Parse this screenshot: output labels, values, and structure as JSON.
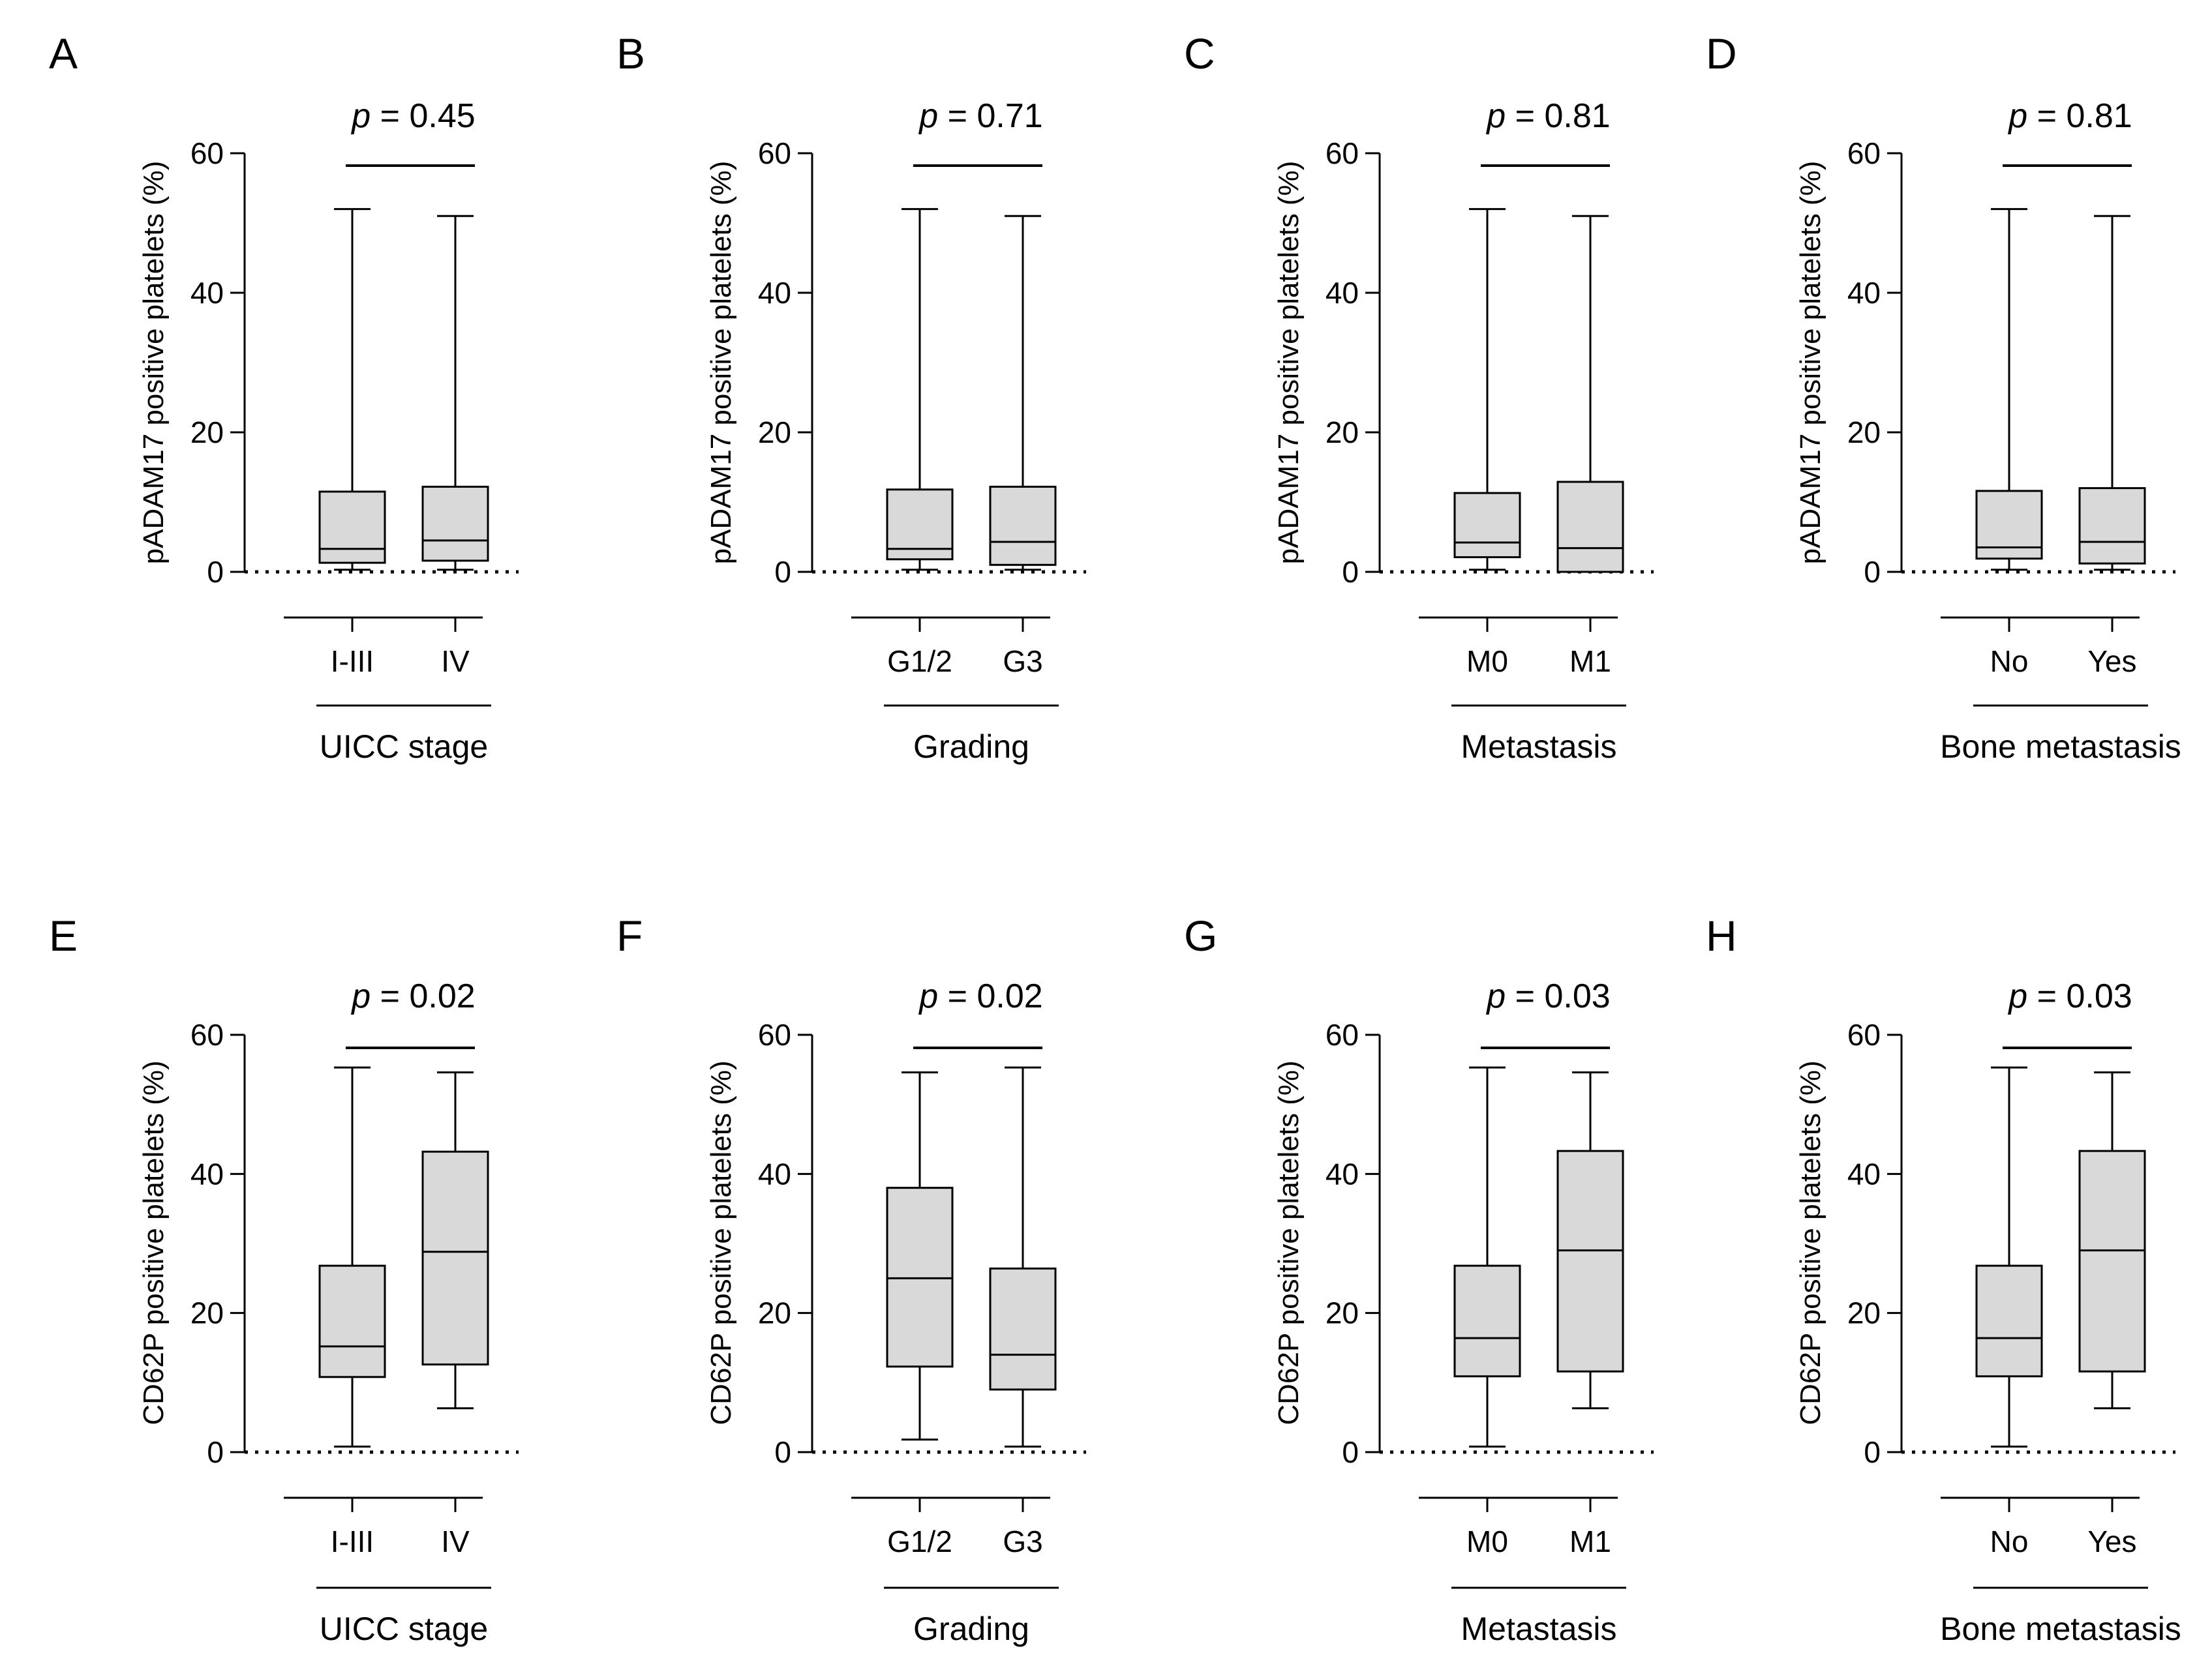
{
  "chart_data": [
    {
      "panel": "A",
      "type": "box",
      "ylabel": "pADAM17 positive platelets (%)",
      "ylim": [
        0,
        60
      ],
      "yticks": [
        0,
        20,
        40,
        60
      ],
      "categories": [
        "I-III",
        "IV"
      ],
      "group_label": "UICC stage",
      "p_value": "0.45",
      "boxes": [
        {
          "min": 0.3,
          "q1": 1.3,
          "median": 3.3,
          "q3": 11.5,
          "max": 52
        },
        {
          "min": 0.3,
          "q1": 1.6,
          "median": 4.5,
          "q3": 12.2,
          "max": 51
        }
      ]
    },
    {
      "panel": "B",
      "type": "box",
      "ylabel": "pADAM17 positive platelets (%)",
      "ylim": [
        0,
        60
      ],
      "yticks": [
        0,
        20,
        40,
        60
      ],
      "categories": [
        "G1/2",
        "G3"
      ],
      "group_label": "Grading",
      "p_value": "0.71",
      "boxes": [
        {
          "min": 0.3,
          "q1": 1.8,
          "median": 3.3,
          "q3": 11.8,
          "max": 52
        },
        {
          "min": 0.3,
          "q1": 1.0,
          "median": 4.3,
          "q3": 12.2,
          "max": 51
        }
      ]
    },
    {
      "panel": "C",
      "type": "box",
      "ylabel": "pADAM17 positive platelets (%)",
      "ylim": [
        0,
        60
      ],
      "yticks": [
        0,
        20,
        40,
        60
      ],
      "categories": [
        "M0",
        "M1"
      ],
      "group_label": "Metastasis",
      "p_value": "0.81",
      "boxes": [
        {
          "min": 0.3,
          "q1": 2.1,
          "median": 4.2,
          "q3": 11.3,
          "max": 52
        },
        {
          "min": 0.0,
          "q1": 0.0,
          "median": 3.4,
          "q3": 12.9,
          "max": 51
        }
      ]
    },
    {
      "panel": "D",
      "type": "box",
      "ylabel": "pADAM17 positive platelets (%)",
      "ylim": [
        0,
        60
      ],
      "yticks": [
        0,
        20,
        40,
        60
      ],
      "categories": [
        "No",
        "Yes"
      ],
      "group_label": "Bone metastasis",
      "p_value": "0.81",
      "boxes": [
        {
          "min": 0.3,
          "q1": 1.9,
          "median": 3.5,
          "q3": 11.6,
          "max": 52
        },
        {
          "min": 0.3,
          "q1": 1.2,
          "median": 4.3,
          "q3": 12.0,
          "max": 51
        }
      ]
    },
    {
      "panel": "E",
      "type": "box",
      "ylabel": "CD62P positive platelets (%)",
      "ylim": [
        0,
        60
      ],
      "yticks": [
        0,
        20,
        40,
        60
      ],
      "categories": [
        "I-III",
        "IV"
      ],
      "group_label": "UICC stage",
      "p_value": "0.02",
      "boxes": [
        {
          "min": 0.8,
          "q1": 10.8,
          "median": 15.2,
          "q3": 26.8,
          "max": 55.3
        },
        {
          "min": 6.3,
          "q1": 12.6,
          "median": 28.8,
          "q3": 43.2,
          "max": 54.6
        }
      ]
    },
    {
      "panel": "F",
      "type": "box",
      "ylabel": "CD62P positive platelets (%)",
      "ylim": [
        0,
        60
      ],
      "yticks": [
        0,
        20,
        40,
        60
      ],
      "categories": [
        "G1/2",
        "G3"
      ],
      "group_label": "Grading",
      "p_value": "0.02",
      "boxes": [
        {
          "min": 1.8,
          "q1": 12.3,
          "median": 25.0,
          "q3": 38.0,
          "max": 54.6
        },
        {
          "min": 0.8,
          "q1": 9.0,
          "median": 14.0,
          "q3": 26.4,
          "max": 55.3
        }
      ]
    },
    {
      "panel": "G",
      "type": "box",
      "ylabel": "CD62P positive platelets (%)",
      "ylim": [
        0,
        60
      ],
      "yticks": [
        0,
        20,
        40,
        60
      ],
      "categories": [
        "M0",
        "M1"
      ],
      "group_label": "Metastasis",
      "p_value": "0.03",
      "boxes": [
        {
          "min": 0.8,
          "q1": 10.9,
          "median": 16.4,
          "q3": 26.8,
          "max": 55.3
        },
        {
          "min": 6.3,
          "q1": 11.6,
          "median": 29.0,
          "q3": 43.3,
          "max": 54.6
        }
      ]
    },
    {
      "panel": "H",
      "type": "box",
      "ylabel": "CD62P positive platelets (%)",
      "ylim": [
        0,
        60
      ],
      "yticks": [
        0,
        20,
        40,
        60
      ],
      "categories": [
        "No",
        "Yes"
      ],
      "group_label": "Bone metastasis",
      "p_value": "0.03",
      "boxes": [
        {
          "min": 0.8,
          "q1": 10.9,
          "median": 16.4,
          "q3": 26.8,
          "max": 55.3
        },
        {
          "min": 6.3,
          "q1": 11.6,
          "median": 29.0,
          "q3": 43.3,
          "max": 54.6
        }
      ]
    }
  ],
  "style": {
    "box_fill": "#d9d9d9",
    "line_color": "#000000"
  },
  "p_prefix": "p"
}
